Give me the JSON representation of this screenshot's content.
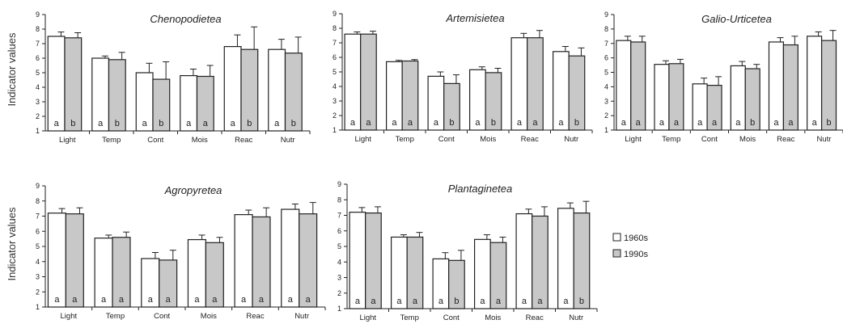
{
  "colors": {
    "s1960": "#ffffff",
    "s1990": "#c8c8c8",
    "stroke": "#222222"
  },
  "ylabel": "Indicator values",
  "legend": [
    "1960s",
    "1990s"
  ],
  "chart_data": [
    {
      "type": "bar",
      "title": "Chenopodietea",
      "categories": [
        "Light",
        "Temp",
        "Cont",
        "Mois",
        "Reac",
        "Nutr"
      ],
      "ylim": [
        1,
        9
      ],
      "series": [
        {
          "name": "1960s",
          "values": [
            7.5,
            6.0,
            5.0,
            4.8,
            6.8,
            6.6
          ],
          "errors": [
            0.3,
            0.15,
            0.65,
            0.45,
            0.8,
            0.7
          ]
        },
        {
          "name": "1990s",
          "values": [
            7.4,
            5.9,
            4.55,
            4.75,
            6.6,
            6.35
          ],
          "errors": [
            0.35,
            0.5,
            1.2,
            0.75,
            1.55,
            1.1
          ]
        }
      ],
      "labels": [
        [
          "a",
          "b"
        ],
        [
          "a",
          "b"
        ],
        [
          "a",
          "b"
        ],
        [
          "a",
          "a"
        ],
        [
          "a",
          "b"
        ],
        [
          "a",
          "b"
        ]
      ]
    },
    {
      "type": "bar",
      "title": "Artemisietea",
      "categories": [
        "Light",
        "Temp",
        "Cont",
        "Mois",
        "Reac",
        "Nutr"
      ],
      "ylim": [
        1,
        9
      ],
      "series": [
        {
          "name": "1960s",
          "values": [
            7.6,
            5.7,
            4.7,
            5.15,
            7.35,
            6.4
          ],
          "errors": [
            0.15,
            0.1,
            0.3,
            0.2,
            0.3,
            0.35
          ]
        },
        {
          "name": "1990s",
          "values": [
            7.6,
            5.75,
            4.2,
            4.95,
            7.35,
            6.1
          ],
          "errors": [
            0.2,
            0.1,
            0.6,
            0.3,
            0.5,
            0.55
          ]
        }
      ],
      "labels": [
        [
          "a",
          "a"
        ],
        [
          "a",
          "a"
        ],
        [
          "a",
          "b"
        ],
        [
          "a",
          "b"
        ],
        [
          "a",
          "a"
        ],
        [
          "a",
          "b"
        ]
      ]
    },
    {
      "type": "bar",
      "title": "Galio-Urticetea",
      "categories": [
        "Light",
        "Temp",
        "Cont",
        "Mois",
        "Reac",
        "Nutr"
      ],
      "ylim": [
        1,
        9
      ],
      "series": [
        {
          "name": "1960s",
          "values": [
            7.2,
            5.55,
            4.2,
            5.45,
            7.1,
            7.5
          ],
          "errors": [
            0.3,
            0.25,
            0.4,
            0.3,
            0.3,
            0.3
          ]
        },
        {
          "name": "1990s",
          "values": [
            7.1,
            5.6,
            4.1,
            5.25,
            6.9,
            7.2
          ],
          "errors": [
            0.4,
            0.3,
            0.6,
            0.3,
            0.6,
            0.7
          ]
        }
      ],
      "labels": [
        [
          "a",
          "a"
        ],
        [
          "a",
          "a"
        ],
        [
          "a",
          "a"
        ],
        [
          "a",
          "b"
        ],
        [
          "a",
          "a"
        ],
        [
          "a",
          "b"
        ]
      ]
    },
    {
      "type": "bar",
      "title": "Agropyretea",
      "categories": [
        "Light",
        "Temp",
        "Cont",
        "Mois",
        "Reac",
        "Nutr"
      ],
      "ylim": [
        1,
        9
      ],
      "series": [
        {
          "name": "1960s",
          "values": [
            7.2,
            5.55,
            4.2,
            5.45,
            7.1,
            7.45
          ],
          "errors": [
            0.3,
            0.2,
            0.4,
            0.3,
            0.3,
            0.35
          ]
        },
        {
          "name": "1990s",
          "values": [
            7.15,
            5.6,
            4.1,
            5.25,
            6.95,
            7.15
          ],
          "errors": [
            0.4,
            0.35,
            0.65,
            0.35,
            0.6,
            0.75
          ]
        }
      ],
      "labels": [
        [
          "a",
          "a"
        ],
        [
          "a",
          "a"
        ],
        [
          "a",
          "a"
        ],
        [
          "a",
          "a"
        ],
        [
          "a",
          "a"
        ],
        [
          "a",
          "a"
        ]
      ]
    },
    {
      "type": "bar",
      "title": "Plantaginetea",
      "categories": [
        "Light",
        "Temp",
        "Cont",
        "Mois",
        "Reac",
        "Nutr"
      ],
      "ylim": [
        1,
        9
      ],
      "series": [
        {
          "name": "1960s",
          "values": [
            7.2,
            5.6,
            4.2,
            5.45,
            7.1,
            7.45
          ],
          "errors": [
            0.3,
            0.15,
            0.4,
            0.3,
            0.3,
            0.35
          ]
        },
        {
          "name": "1990s",
          "values": [
            7.15,
            5.6,
            4.1,
            5.25,
            6.95,
            7.15
          ],
          "errors": [
            0.4,
            0.3,
            0.65,
            0.35,
            0.6,
            0.75
          ]
        }
      ],
      "labels": [
        [
          "a",
          "a"
        ],
        [
          "a",
          "a"
        ],
        [
          "a",
          "b"
        ],
        [
          "a",
          "a"
        ],
        [
          "a",
          "a"
        ],
        [
          "a",
          "b"
        ]
      ]
    }
  ]
}
